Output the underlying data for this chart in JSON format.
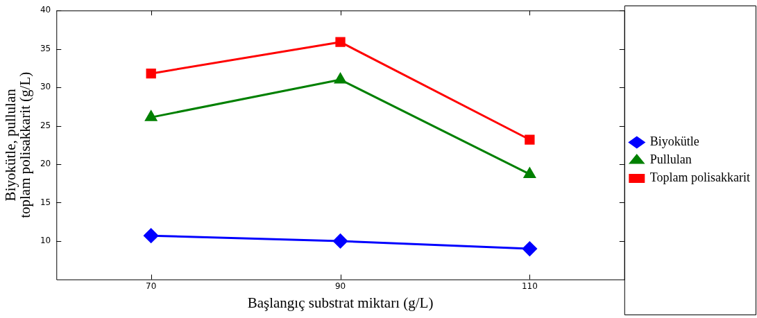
{
  "chart_data": {
    "type": "line",
    "xlabel": "Başlangıç substrat miktarı (g/L)",
    "ylabel": "Biyokütle, pullulan\ntoplam polisakkarit (g/L)",
    "x": [
      70,
      90,
      110
    ],
    "series": [
      {
        "name": "Biyokütle",
        "color": "#0000ff",
        "marker": "diamond",
        "values": [
          10.7,
          10.0,
          9.0
        ]
      },
      {
        "name": "Pullulan",
        "color": "#008000",
        "marker": "triangle",
        "values": [
          26.1,
          31.0,
          18.7
        ]
      },
      {
        "name": "Toplam polisakkarit",
        "color": "#ff0000",
        "marker": "square",
        "values": [
          31.8,
          35.9,
          23.2
        ]
      }
    ],
    "xlim": [
      60,
      120
    ],
    "xticks": [
      70,
      90,
      110
    ],
    "ylim": [
      5,
      40
    ],
    "yticks": [
      10,
      15,
      20,
      25,
      30,
      35,
      40
    ],
    "grid": false,
    "legend": "right",
    "line_style": "solid"
  }
}
